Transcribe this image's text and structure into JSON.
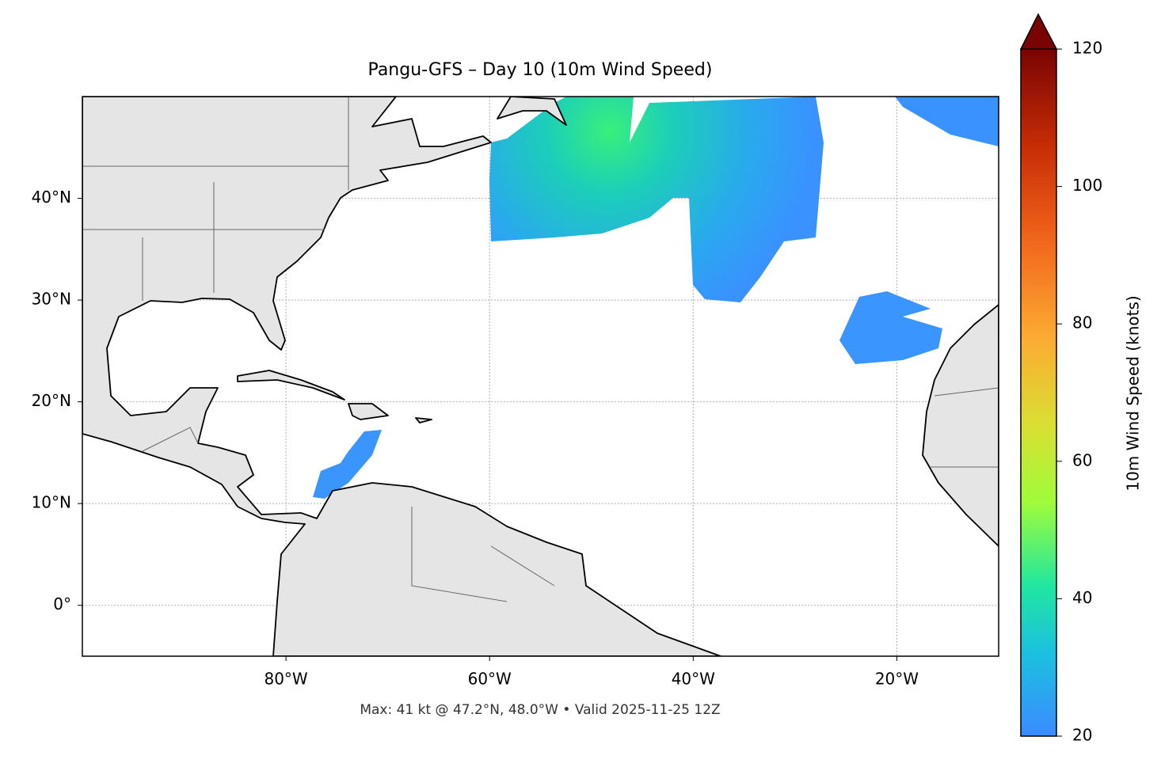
{
  "title": "Pangu-GFS – Day 10 (10m Wind Speed)",
  "footer": "Max: 41 kt @ 47.2°N, 48.0°W • Valid 2025-11-25 12Z",
  "map": {
    "lonlim": [
      -100,
      -10
    ],
    "latlim": [
      -5,
      50
    ],
    "lon_ticks": [
      {
        "value": -80,
        "label": "80°W"
      },
      {
        "value": -60,
        "label": "60°W"
      },
      {
        "value": -40,
        "label": "40°W"
      },
      {
        "value": -20,
        "label": "20°W"
      }
    ],
    "lat_ticks": [
      {
        "value": 0,
        "label": "0°"
      },
      {
        "value": 10,
        "label": "10°N"
      },
      {
        "value": 20,
        "label": "20°N"
      },
      {
        "value": 30,
        "label": "30°N"
      },
      {
        "value": 40,
        "label": "40°N"
      }
    ]
  },
  "colorbar": {
    "label": "10m Wind Speed (knots)",
    "lim": [
      20,
      120
    ],
    "ticks": [
      20,
      40,
      60,
      80,
      100,
      120
    ]
  }
}
